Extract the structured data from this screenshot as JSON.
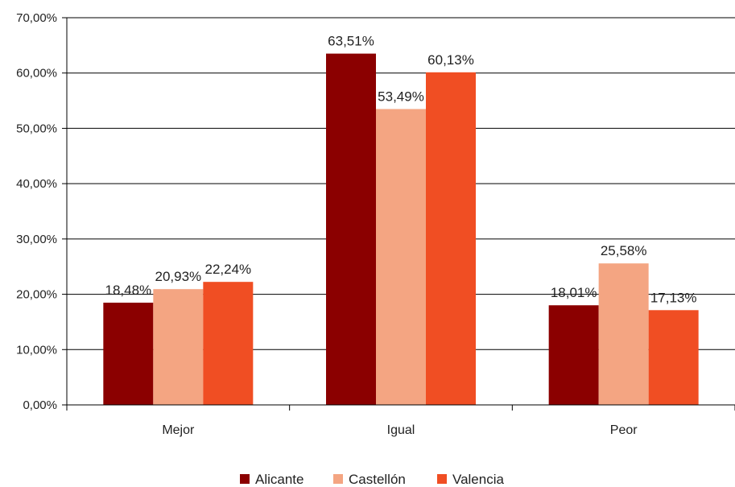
{
  "chart_data": {
    "type": "bar",
    "categories": [
      "Mejor",
      "Igual",
      "Peor"
    ],
    "series": [
      {
        "name": "Alicante",
        "values": [
          18.48,
          63.51,
          18.01
        ],
        "labels": [
          "18,48%",
          "63,51%",
          "18,01%"
        ],
        "color": "#8b0000"
      },
      {
        "name": "Castellón",
        "values": [
          20.93,
          53.49,
          25.58
        ],
        "labels": [
          "20,93%",
          "53,49%",
          "25,58%"
        ],
        "color": "#f4a582"
      },
      {
        "name": "Valencia",
        "values": [
          22.24,
          60.13,
          17.13
        ],
        "labels": [
          "22,24%",
          "60,13%",
          "17,13%"
        ],
        "color": "#f04e23"
      }
    ],
    "y_ticks": [
      "0,00%",
      "10,00%",
      "20,00%",
      "30,00%",
      "40,00%",
      "50,00%",
      "60,00%",
      "70,00%"
    ],
    "ylim": [
      0,
      70
    ],
    "grid": true,
    "legend_position": "bottom"
  }
}
